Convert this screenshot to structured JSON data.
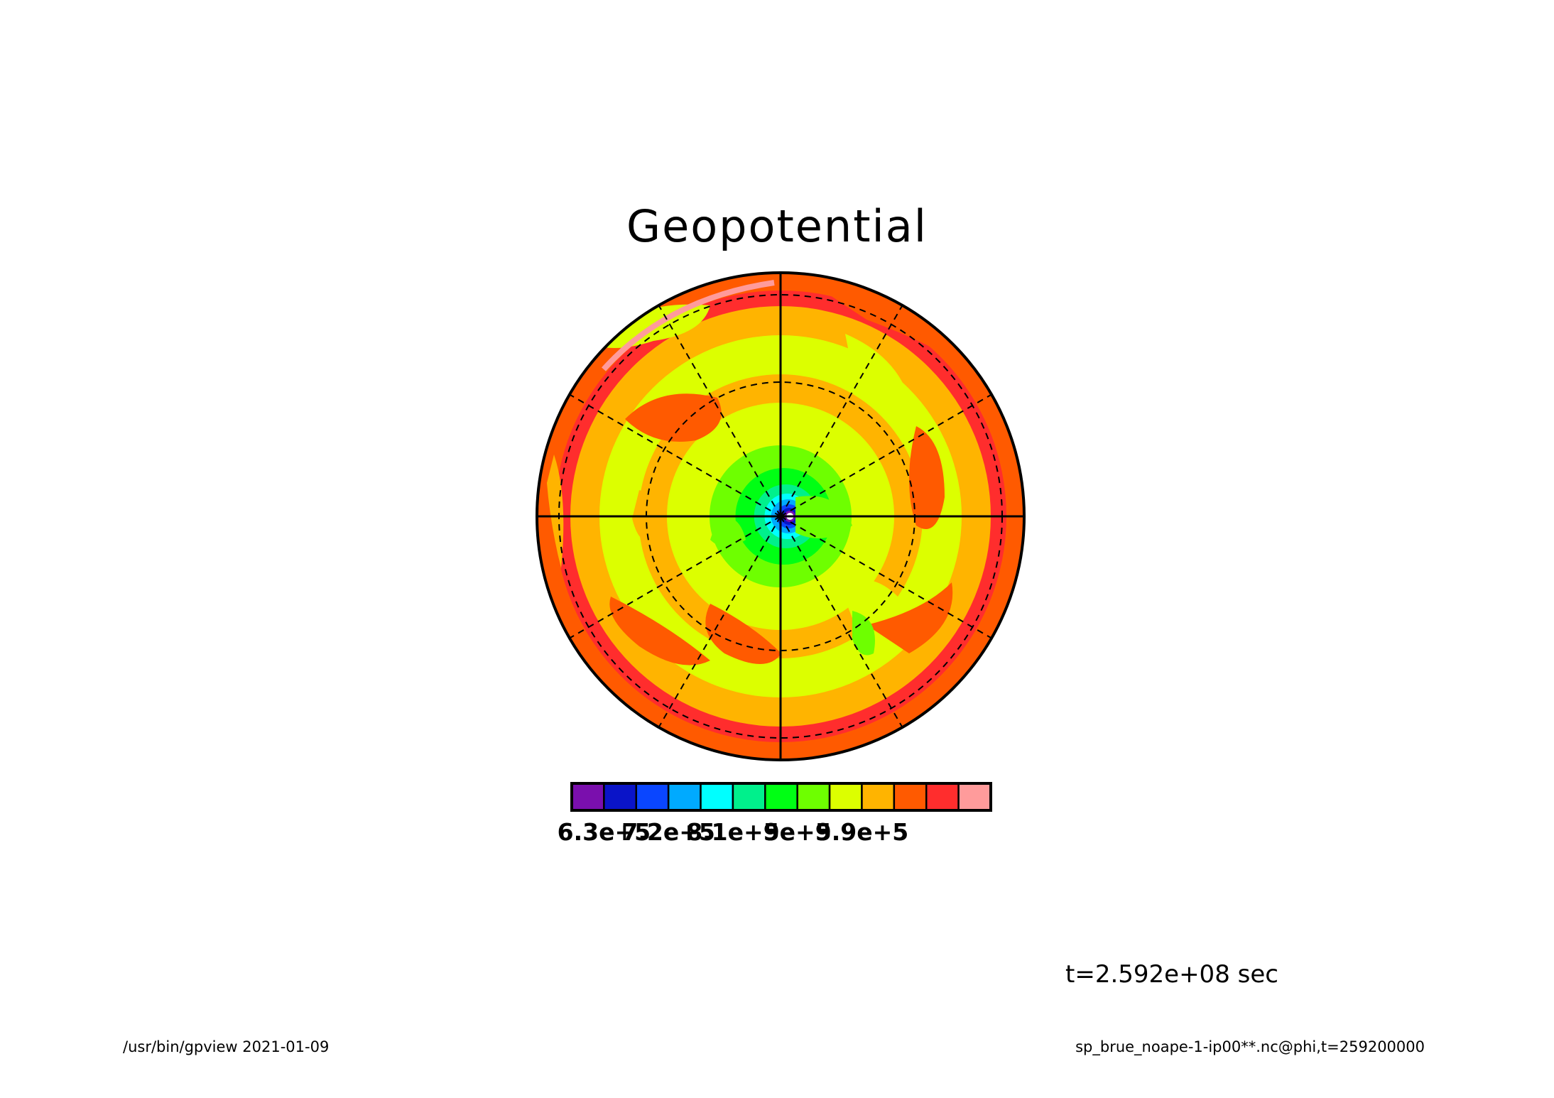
{
  "chart_data": {
    "type": "heatmap",
    "projection": "polar-stereographic",
    "title": "Geopotential",
    "variable": "phi",
    "colorbar": {
      "colors": [
        "#7a0fad",
        "#0a14c8",
        "#0a46ff",
        "#00aaff",
        "#00ffff",
        "#00f08c",
        "#00ff14",
        "#6eff00",
        "#dcff00",
        "#ffb400",
        "#ff5a00",
        "#ff2d2d",
        "#ff9b9b"
      ],
      "tick_labels": [
        "6.3e+5",
        "7.2e+5",
        "8.1e+5",
        "9e+5",
        "9.9e+5"
      ],
      "tick_values": [
        630000,
        720000,
        810000,
        900000,
        990000
      ],
      "levels": [
        630000,
        675000,
        720000,
        765000,
        810000,
        855000,
        900000,
        945000,
        990000
      ]
    },
    "grid": true,
    "latitude_circles_dashed": 2,
    "meridians_dashed": 8
  },
  "time_label": "t=2.592e+08 sec",
  "footer": {
    "left": "/usr/bin/gpview  2021-01-09",
    "right": "sp_brue_noape-1-ip00**.nc@phi,t=259200000"
  }
}
